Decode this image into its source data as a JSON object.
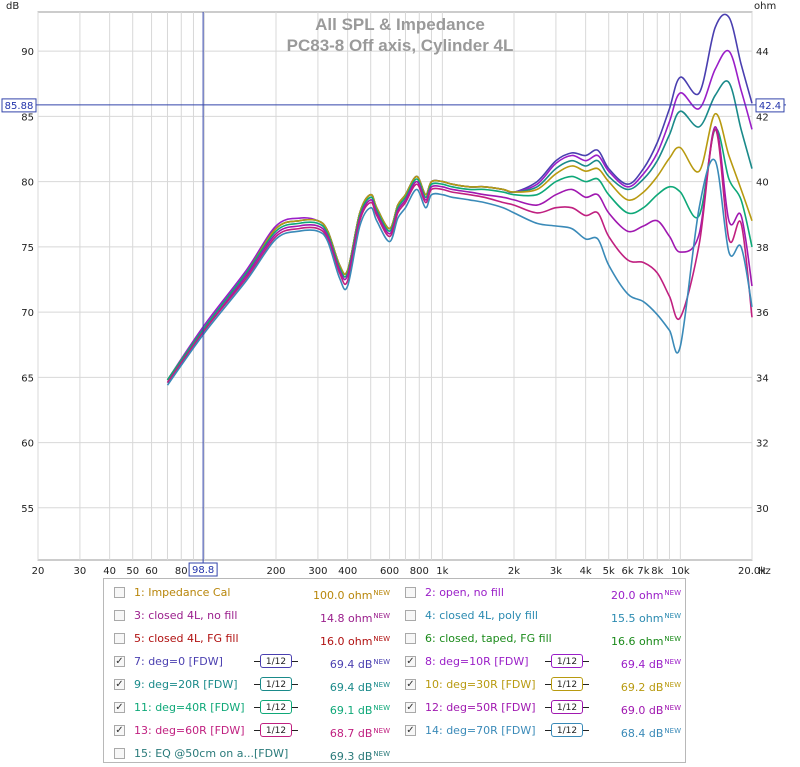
{
  "title_line1": "All SPL & Impedance",
  "title_line2": "PC83-8 Off axis, Cylinder 4L",
  "axis": {
    "left_unit": "dB",
    "right_unit": "ohm",
    "x_unit": "Hz",
    "cursor_x_label": "98.8",
    "cursor_y_label": "85.88",
    "cursor_right_label": "42.4"
  },
  "chart_data": {
    "type": "line",
    "x_scale": "log",
    "xlim": [
      20,
      20000
    ],
    "ylim": [
      51,
      93
    ],
    "y2lim": [
      28.4,
      45.2
    ],
    "ylabel": "dB",
    "y2label": "ohm",
    "xlabel": "Hz",
    "x_ticks": [
      20,
      30,
      40,
      50,
      60,
      80,
      100,
      200,
      300,
      400,
      600,
      800,
      1000,
      2000,
      3000,
      4000,
      5000,
      6000,
      7000,
      8000,
      10000,
      20000
    ],
    "x_tick_labels": [
      "20",
      "30",
      "40",
      "50",
      "60",
      "80",
      "",
      "200",
      "300",
      "400",
      "600",
      "800",
      "1k",
      "2k",
      "3k",
      "4k",
      "5k",
      "6k",
      "7k",
      "8k",
      "10k",
      "20.0k"
    ],
    "y_ticks": [
      55,
      60,
      65,
      70,
      75,
      80,
      85,
      90
    ],
    "y2_ticks": [
      30,
      32,
      34,
      36,
      38,
      40,
      42,
      44
    ],
    "cursor": {
      "x": 98.8,
      "y": 85.88,
      "y2": 42.4
    },
    "x": [
      70,
      100,
      150,
      200,
      250,
      300,
      330,
      370,
      400,
      450,
      500,
      530,
      600,
      650,
      700,
      780,
      850,
      900,
      1000,
      1100,
      1300,
      1500,
      1800,
      2000,
      2500,
      3000,
      3500,
      4000,
      4500,
      5000,
      6000,
      7000,
      8000,
      9000,
      10000,
      12000,
      14000,
      16000,
      18000,
      20000
    ],
    "series": [
      {
        "name": "deg=0",
        "color": "#4a3fb0",
        "values": [
          64.6,
          68.8,
          73.0,
          76.4,
          77.0,
          77.0,
          76.2,
          73.6,
          73.2,
          77.6,
          79.0,
          78.0,
          76.4,
          78.2,
          79.0,
          80.4,
          79.0,
          80.0,
          80.0,
          79.8,
          79.6,
          79.6,
          79.4,
          79.2,
          80.0,
          81.6,
          82.2,
          82.0,
          82.4,
          81.0,
          79.8,
          81.0,
          83.0,
          85.6,
          88.0,
          86.8,
          91.8,
          92.6,
          89.0,
          86.0
        ]
      },
      {
        "name": "deg=10R",
        "color": "#9a1ec8",
        "values": [
          64.8,
          69.0,
          73.2,
          76.6,
          77.2,
          77.0,
          76.2,
          73.6,
          73.2,
          77.6,
          79.0,
          78.0,
          76.4,
          78.2,
          79.0,
          80.4,
          79.0,
          80.0,
          80.0,
          79.8,
          79.6,
          79.6,
          79.4,
          79.2,
          79.8,
          81.4,
          82.0,
          81.6,
          82.0,
          80.8,
          79.6,
          80.6,
          82.2,
          84.6,
          86.8,
          85.6,
          88.6,
          90.0,
          87.0,
          84.0
        ]
      },
      {
        "name": "deg=20R",
        "color": "#1a8a8a",
        "values": [
          64.8,
          68.8,
          73.0,
          76.4,
          77.0,
          77.0,
          76.2,
          73.6,
          73.2,
          77.6,
          79.0,
          78.0,
          76.4,
          78.2,
          79.0,
          80.4,
          79.0,
          80.0,
          80.0,
          79.8,
          79.6,
          79.6,
          79.4,
          79.2,
          79.6,
          81.0,
          81.6,
          81.2,
          81.6,
          80.4,
          79.4,
          80.2,
          81.6,
          83.6,
          85.4,
          84.2,
          86.6,
          87.6,
          84.0,
          81.0
        ]
      },
      {
        "name": "deg=30R",
        "color": "#b89a10",
        "values": [
          64.8,
          68.8,
          73.0,
          76.4,
          77.0,
          77.0,
          76.2,
          73.6,
          73.2,
          77.6,
          79.0,
          78.0,
          76.4,
          78.2,
          79.0,
          80.4,
          79.0,
          80.0,
          80.0,
          79.8,
          79.6,
          79.6,
          79.4,
          79.2,
          79.4,
          80.6,
          81.2,
          80.8,
          81.0,
          80.0,
          78.6,
          79.2,
          80.4,
          81.8,
          82.6,
          80.8,
          85.2,
          82.0,
          79.4,
          77.0
        ]
      },
      {
        "name": "deg=40R",
        "color": "#0ea878",
        "values": [
          64.8,
          68.8,
          73.0,
          76.2,
          76.8,
          76.8,
          76.0,
          73.4,
          73.0,
          77.4,
          78.8,
          77.8,
          76.2,
          78.0,
          78.8,
          80.2,
          78.8,
          79.8,
          79.8,
          79.6,
          79.4,
          79.4,
          79.2,
          79.0,
          79.0,
          80.0,
          80.4,
          80.0,
          80.2,
          79.0,
          77.6,
          78.0,
          79.0,
          79.6,
          79.2,
          77.4,
          84.0,
          80.2,
          78.6,
          75.0
        ]
      },
      {
        "name": "deg=50R",
        "color": "#a018b0",
        "values": [
          64.6,
          68.6,
          72.8,
          76.0,
          76.6,
          76.6,
          75.8,
          73.2,
          72.8,
          77.2,
          78.6,
          77.6,
          76.0,
          77.8,
          78.6,
          80.0,
          78.6,
          79.6,
          79.6,
          79.4,
          79.2,
          79.0,
          78.8,
          78.6,
          78.2,
          79.0,
          79.4,
          78.8,
          79.0,
          77.6,
          76.2,
          76.6,
          77.0,
          75.8,
          74.6,
          76.0,
          84.2,
          77.0,
          77.4,
          72.0
        ]
      },
      {
        "name": "deg=60R",
        "color": "#c02080",
        "values": [
          64.6,
          68.6,
          72.6,
          75.8,
          76.4,
          76.4,
          75.6,
          73.0,
          72.4,
          77.0,
          78.4,
          77.4,
          75.8,
          77.6,
          78.4,
          79.8,
          78.4,
          79.4,
          79.4,
          79.2,
          79.0,
          78.8,
          78.4,
          78.2,
          77.6,
          78.0,
          78.0,
          77.4,
          77.6,
          75.8,
          74.0,
          73.8,
          73.0,
          71.2,
          69.6,
          75.2,
          84.0,
          75.6,
          76.8,
          69.6
        ]
      },
      {
        "name": "deg=70R",
        "color": "#3a8ab8",
        "values": [
          64.4,
          68.4,
          72.4,
          75.6,
          76.2,
          76.2,
          75.4,
          72.6,
          72.0,
          76.6,
          78.0,
          77.0,
          75.4,
          77.2,
          78.0,
          79.4,
          78.0,
          79.0,
          79.0,
          78.8,
          78.6,
          78.4,
          78.0,
          77.6,
          76.8,
          76.6,
          76.4,
          75.6,
          75.6,
          73.6,
          71.4,
          70.8,
          69.8,
          68.6,
          67.4,
          78.0,
          81.6,
          74.6,
          75.0,
          70.4
        ]
      }
    ],
    "legend": [
      {
        "label": "1: Impedance Cal",
        "value": "100.0 ohm",
        "checked": false
      },
      {
        "label": "2: open, no fill",
        "value": "20.0 ohm",
        "checked": false
      },
      {
        "label": "3: closed 4L, no fill",
        "value": "14.8 ohm",
        "checked": false
      },
      {
        "label": "4: closed 4L, poly fill",
        "value": "15.5 ohm",
        "checked": false
      },
      {
        "label": "5: closed 4L, FG fill",
        "value": "16.0 ohm",
        "checked": false
      },
      {
        "label": "6: closed, taped, FG fill",
        "value": "16.6 ohm",
        "checked": false
      },
      {
        "label": "7: deg=0 [FDW]",
        "value": "69.4 dB",
        "checked": true,
        "smoothing": "1/12"
      },
      {
        "label": "8: deg=10R [FDW]",
        "value": "69.4 dB",
        "checked": true,
        "smoothing": "1/12"
      },
      {
        "label": "9: deg=20R [FDW]",
        "value": "69.4 dB",
        "checked": true,
        "smoothing": "1/12"
      },
      {
        "label": "10: deg=30R [FDW]",
        "value": "69.2 dB",
        "checked": true,
        "smoothing": "1/12"
      },
      {
        "label": "11: deg=40R [FDW]",
        "value": "69.1 dB",
        "checked": true,
        "smoothing": "1/12"
      },
      {
        "label": "12: deg=50R [FDW]",
        "value": "69.0 dB",
        "checked": true,
        "smoothing": "1/12"
      },
      {
        "label": "13: deg=60R [FDW]",
        "value": "68.7 dB",
        "checked": true,
        "smoothing": "1/12"
      },
      {
        "label": "14: deg=70R [FDW]",
        "value": "68.4 dB",
        "checked": true,
        "smoothing": "1/12"
      },
      {
        "label": "15: EQ @50cm on a...[FDW]",
        "value": "69.3 dB",
        "checked": false
      }
    ],
    "legend_new_tag": "NEW",
    "legend_colors": [
      "#b8860b",
      "#9a1ec8",
      "#9a1e8c",
      "#2a8ab0",
      "#b01010",
      "#1a8a1a",
      "#4a3fb0",
      "#9a1ec8",
      "#1a8a8a",
      "#b89a10",
      "#0ea878",
      "#a018b0",
      "#c02080",
      "#3a8ab8",
      "#2a7a7a"
    ]
  }
}
